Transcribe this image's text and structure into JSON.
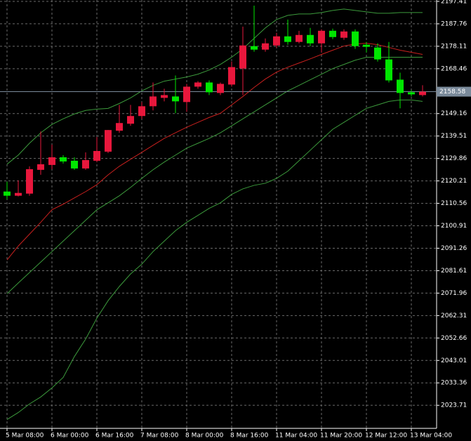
{
  "chart_data": {
    "type": "candlestick",
    "categories": [
      "5 Mar 08:00",
      null,
      null,
      null,
      "6 Mar 00:00",
      null,
      null,
      null,
      "6 Mar 16:00",
      null,
      null,
      null,
      "7 Mar 08:00",
      null,
      null,
      null,
      "8 Mar 00:00",
      null,
      null,
      null,
      "8 Mar 16:00",
      null,
      null,
      null,
      "11 Mar 04:00",
      null,
      null,
      null,
      "11 Mar 20:00",
      null,
      null,
      null,
      "12 Mar 12:00",
      null,
      null,
      null,
      "13 Mar 04:00",
      null
    ],
    "open": [
      2115.64,
      2113.84,
      2114.74,
      2124.96,
      2127.07,
      2130.37,
      2128.87,
      2125.56,
      2128.87,
      2132.78,
      2141.79,
      2144.8,
      2148.11,
      2152.31,
      2155.92,
      2156.52,
      2154.12,
      2160.73,
      2162.53,
      2158.02,
      2161.63,
      2168.54,
      2178.16,
      2176.66,
      2178.46,
      2182.37,
      2179.97,
      2182.97,
      2179.36,
      2184.77,
      2181.77,
      2184.47,
      2178.76,
      2177.56,
      2172.45,
      2163.74,
      2158.32,
      2157.12
    ],
    "high": [
      2119.85,
      2120.45,
      2126.46,
      2141.49,
      2135.78,
      2131.27,
      2130.37,
      2132.48,
      2139.09,
      2142.09,
      2152.91,
      2152.91,
      2154.12,
      2162.53,
      2159.83,
      2165.54,
      2161.93,
      2163.13,
      2163.43,
      2162.53,
      2171.55,
      2186.58,
      2195.6,
      2181.47,
      2183.87,
      2189.58,
      2184.77,
      2185.98,
      2185.38,
      2185.68,
      2185.38,
      2185.38,
      2179.97,
      2179.36,
      2179.97,
      2166.74,
      2159.23,
      2161.33
    ],
    "low": [
      2112.34,
      2113.54,
      2113.84,
      2122.86,
      2125.26,
      2127.67,
      2124.96,
      2124.96,
      2128.27,
      2132.18,
      2140.89,
      2143.9,
      2146.9,
      2150.51,
      2154.42,
      2149.31,
      2149.91,
      2159.83,
      2157.12,
      2157.12,
      2160.73,
      2157.12,
      2175.76,
      2175.76,
      2177.56,
      2178.76,
      2179.36,
      2178.16,
      2175.46,
      2181.17,
      2180.87,
      2176.96,
      2175.46,
      2171.55,
      2162.53,
      2151.41,
      2156.52,
      2156.52
    ],
    "close": [
      2113.84,
      2115.04,
      2125.26,
      2127.37,
      2130.37,
      2128.57,
      2125.56,
      2129.17,
      2133.08,
      2142.09,
      2145.1,
      2148.11,
      2152.31,
      2156.52,
      2157.12,
      2154.42,
      2160.73,
      2162.53,
      2158.32,
      2161.93,
      2169.15,
      2178.46,
      2176.66,
      2179.36,
      2182.37,
      2179.97,
      2182.97,
      2179.36,
      2184.77,
      2182.07,
      2184.47,
      2178.16,
      2177.86,
      2172.45,
      2163.43,
      2158.02,
      2157.42,
      2158.58
    ],
    "up_color": "#e8173c",
    "down_color": "#00e600",
    "lines": [
      {
        "color": "#3c9a3c",
        "values": [
          2127.4,
          2131.3,
          2136.4,
          2140.9,
          2144.5,
          2146.9,
          2149.0,
          2150.5,
          2151.1,
          2151.4,
          2153.5,
          2155.9,
          2158.9,
          2161.3,
          2163.1,
          2164.0,
          2164.9,
          2166.1,
          2167.9,
          2170.3,
          2173.4,
          2177.0,
          2181.5,
          2186.0,
          2189.6,
          2191.4,
          2192.0,
          2192.0,
          2192.6,
          2193.5,
          2194.1,
          2193.5,
          2192.9,
          2192.3,
          2192.3,
          2192.6,
          2192.6,
          2192.6
        ]
      },
      {
        "color": "#c8201e",
        "values": [
          2086.2,
          2092.2,
          2097.3,
          2102.4,
          2107.8,
          2110.2,
          2112.9,
          2115.6,
          2118.6,
          2122.8,
          2126.5,
          2129.5,
          2132.5,
          2135.5,
          2138.5,
          2140.9,
          2143.3,
          2145.4,
          2147.5,
          2149.3,
          2152.9,
          2156.5,
          2160.4,
          2164.0,
          2167.0,
          2169.1,
          2170.9,
          2172.7,
          2174.6,
          2176.4,
          2178.2,
          2179.1,
          2179.4,
          2178.8,
          2177.6,
          2176.4,
          2175.5,
          2174.6
        ]
      },
      {
        "color": "#3c9a3c",
        "values": [
          2071.7,
          2076.3,
          2080.8,
          2085.3,
          2089.8,
          2094.3,
          2098.8,
          2103.3,
          2107.8,
          2110.8,
          2113.8,
          2117.4,
          2121.3,
          2125.0,
          2128.3,
          2131.3,
          2134.3,
          2136.4,
          2138.5,
          2140.9,
          2143.9,
          2146.9,
          2149.9,
          2152.9,
          2155.9,
          2158.9,
          2161.3,
          2163.7,
          2166.1,
          2168.5,
          2170.3,
          2172.1,
          2173.4,
          2173.4,
          2173.4,
          2173.4,
          2173.4,
          2173.4
        ]
      },
      {
        "color": "#3c9a3c",
        "values": [
          2017.6,
          2020.6,
          2024.3,
          2027.3,
          2031.2,
          2035.7,
          2044.7,
          2052.2,
          2061.2,
          2068.7,
          2074.8,
          2080.2,
          2084.4,
          2089.8,
          2094.3,
          2098.8,
          2102.4,
          2105.4,
          2108.4,
          2110.8,
          2114.4,
          2116.8,
          2118.3,
          2119.2,
          2121.3,
          2124.4,
          2128.9,
          2133.4,
          2137.9,
          2142.4,
          2145.4,
          2148.4,
          2151.4,
          2152.9,
          2154.4,
          2155.0,
          2155.0,
          2154.4
        ]
      }
    ],
    "current_price": 2158.58,
    "ylim": [
      2013.8,
      2198.0
    ],
    "yticks": [
      2197.41,
      2187.76,
      2178.11,
      2168.46,
      2149.16,
      2139.51,
      2129.86,
      2120.21,
      2110.56,
      2100.91,
      2091.26,
      2081.61,
      2071.96,
      2062.31,
      2052.66,
      2043.01,
      2033.36,
      2023.71
    ],
    "grid": true
  }
}
